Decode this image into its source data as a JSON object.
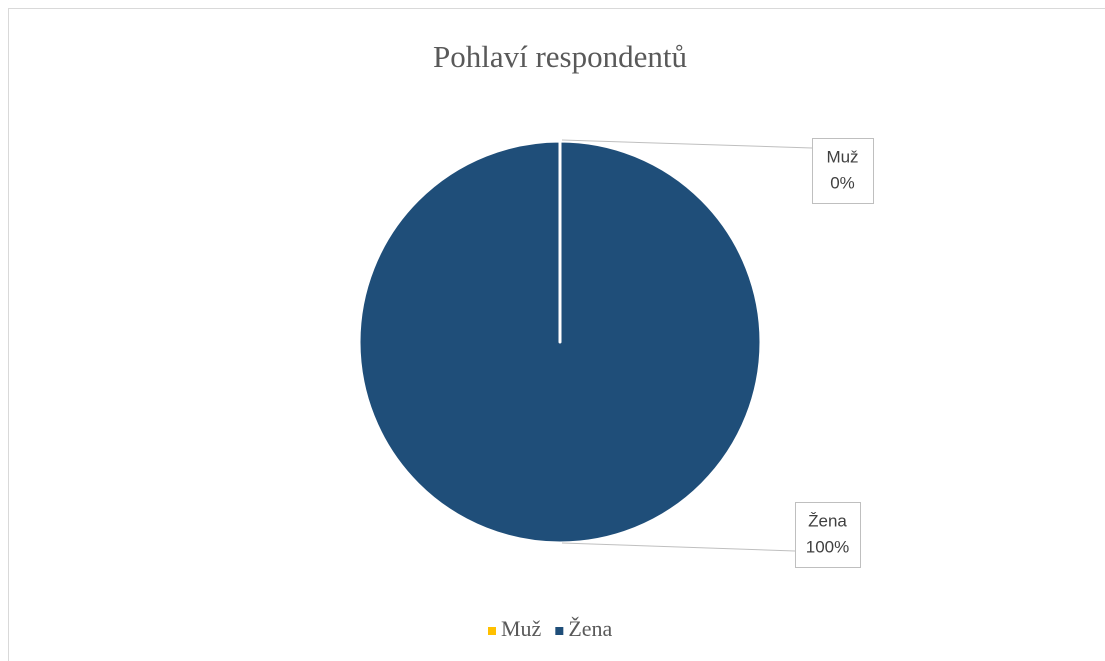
{
  "chart_data": {
    "type": "pie",
    "title": "Pohlaví respondentů",
    "categories": [
      "Muž",
      "Žena"
    ],
    "values": [
      0,
      100
    ],
    "value_labels": [
      "0%",
      "100%"
    ],
    "colors": [
      "#ffc000",
      "#1f4e79"
    ],
    "legend": "bottom"
  }
}
